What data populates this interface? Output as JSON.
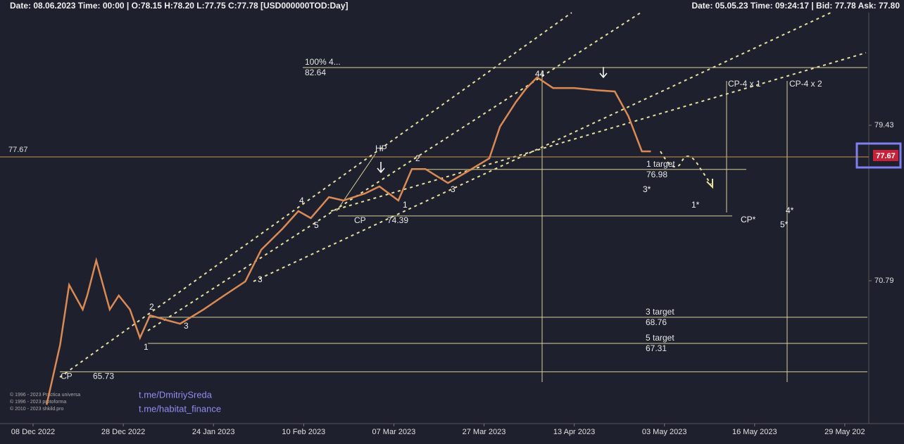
{
  "chart_data": {
    "type": "line",
    "header_left": "Date: 08.06.2023 Time: 00:00 | O:78.15 H:78.20 L:77.75 C:77.78 [USD000000TOD:Day]",
    "header_right": "Date: 05.05.23 Time: 09:24:17 | Bid: 77.78 Ask: 77.80",
    "xlim": [
      "2022-12-08",
      "2023-05-29"
    ],
    "xticks": [
      {
        "value": "2022-12-08",
        "label": "08 Dec 2022"
      },
      {
        "value": "2022-12-28",
        "label": "28 Dec 2022"
      },
      {
        "value": "2023-01-24",
        "label": "24 Jan 2023"
      },
      {
        "value": "2023-02-10",
        "label": "10 Feb 2023"
      },
      {
        "value": "2023-03-07",
        "label": "07 Mar 2023"
      },
      {
        "value": "2023-03-27",
        "label": "27 Mar 2023"
      },
      {
        "value": "2023-04-13",
        "label": "13 Apr 2023"
      },
      {
        "value": "2023-05-03",
        "label": "03 May 2023"
      },
      {
        "value": "2023-05-16",
        "label": "16 May 2023"
      },
      {
        "value": "2023-05-29",
        "label": "29 May 202"
      }
    ],
    "ylim": [
      62.93,
      85.61
    ],
    "yticks": [
      79.43,
      70.79
    ],
    "price": 77.67,
    "series": [
      {
        "name": "USD000000TOD",
        "color": "#d98a55",
        "x": [
          "2022-12-11",
          "2022-12-14",
          "2022-12-16",
          "2022-12-19",
          "2022-12-20",
          "2022-12-22",
          "2022-12-25",
          "2022-12-27",
          "2022-12-30",
          "2023-01-02",
          "2023-01-05",
          "2023-01-10",
          "2023-01-14",
          "2023-01-21",
          "2023-01-26",
          "2023-01-30",
          "2023-02-02",
          "2023-02-06",
          "2023-02-09",
          "2023-02-12",
          "2023-02-17",
          "2023-02-21",
          "2023-02-27",
          "2023-03-03",
          "2023-03-08",
          "2023-03-11",
          "2023-03-14",
          "2023-03-19",
          "2023-03-23",
          "2023-03-28",
          "2023-03-30",
          "2023-04-02",
          "2023-04-04",
          "2023-04-06",
          "2023-04-09",
          "2023-04-13",
          "2023-04-18",
          "2023-04-22",
          "2023-04-25",
          "2023-04-28",
          "2023-04-30"
        ],
        "values": [
          63.9,
          67.23,
          70.56,
          69.19,
          69.97,
          71.92,
          69.19,
          69.97,
          69.19,
          67.62,
          68.87,
          68.6,
          68.4,
          69.19,
          69.97,
          70.75,
          72.51,
          73.68,
          74.66,
          74.27,
          75.44,
          75.25,
          75.64,
          76.03,
          75.25,
          77.0,
          77.0,
          76.22,
          76.81,
          77.59,
          79.35,
          80.72,
          81.5,
          82.09,
          81.5,
          81.5,
          81.38,
          81.31,
          79.94,
          77.98,
          77.98
        ]
      }
    ],
    "levels": [
      {
        "label": "100%  4...",
        "value": 82.64
      },
      {
        "label": "1 target",
        "value": 76.98
      },
      {
        "label": "3 target",
        "value": 68.76
      },
      {
        "label": "5 target",
        "value": 67.31
      },
      {
        "label": "CP",
        "value": 74.39
      },
      {
        "label": "CP",
        "value": 65.73
      }
    ],
    "annotations": [
      "HP",
      "CP-4 x 1",
      "CP-4 x 2"
    ],
    "wave_labels": [
      "2",
      "1",
      "3",
      "3",
      "4",
      "5",
      "2",
      "1",
      "3",
      "44",
      "3*",
      "1*",
      "CP*",
      "4*",
      "5*"
    ],
    "links": [
      "t.me/DmitriySreda",
      "t.me/habitat_finance"
    ],
    "copyright": [
      "© 1996 - 2023 Practica universa",
      "© 1996 - 2023 protoforma",
      "© 2010 - 2023 shkild.pro"
    ]
  }
}
